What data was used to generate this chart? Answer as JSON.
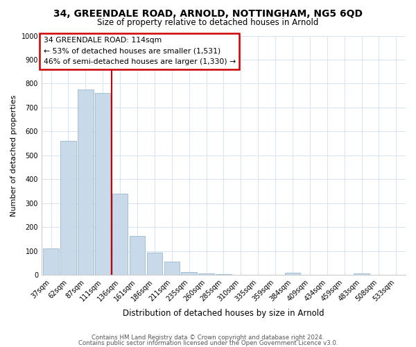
{
  "title": "34, GREENDALE ROAD, ARNOLD, NOTTINGHAM, NG5 6QD",
  "subtitle": "Size of property relative to detached houses in Arnold",
  "xlabel": "Distribution of detached houses by size in Arnold",
  "ylabel": "Number of detached properties",
  "bar_labels": [
    "37sqm",
    "62sqm",
    "87sqm",
    "111sqm",
    "136sqm",
    "161sqm",
    "186sqm",
    "211sqm",
    "235sqm",
    "260sqm",
    "285sqm",
    "310sqm",
    "335sqm",
    "359sqm",
    "384sqm",
    "409sqm",
    "434sqm",
    "459sqm",
    "483sqm",
    "508sqm",
    "533sqm"
  ],
  "bar_values": [
    110,
    560,
    775,
    760,
    340,
    163,
    95,
    55,
    13,
    8,
    5,
    0,
    0,
    0,
    10,
    0,
    0,
    0,
    8,
    0,
    0
  ],
  "bar_color": "#c8daea",
  "bar_edge_color": "#9ab8d0",
  "ylim": [
    0,
    1000
  ],
  "yticks": [
    0,
    100,
    200,
    300,
    400,
    500,
    600,
    700,
    800,
    900,
    1000
  ],
  "vline_x": 3.5,
  "vline_color": "#cc0000",
  "annotation_title": "34 GREENDALE ROAD: 114sqm",
  "annotation_line1": "← 53% of detached houses are smaller (1,531)",
  "annotation_line2": "46% of semi-detached houses are larger (1,330) →",
  "annotation_box_color": "#ffffff",
  "annotation_box_edge": "#cc0000",
  "footer1": "Contains HM Land Registry data © Crown copyright and database right 2024.",
  "footer2": "Contains public sector information licensed under the Open Government Licence v3.0.",
  "bg_color": "#ffffff",
  "grid_color": "#d8e4f0"
}
